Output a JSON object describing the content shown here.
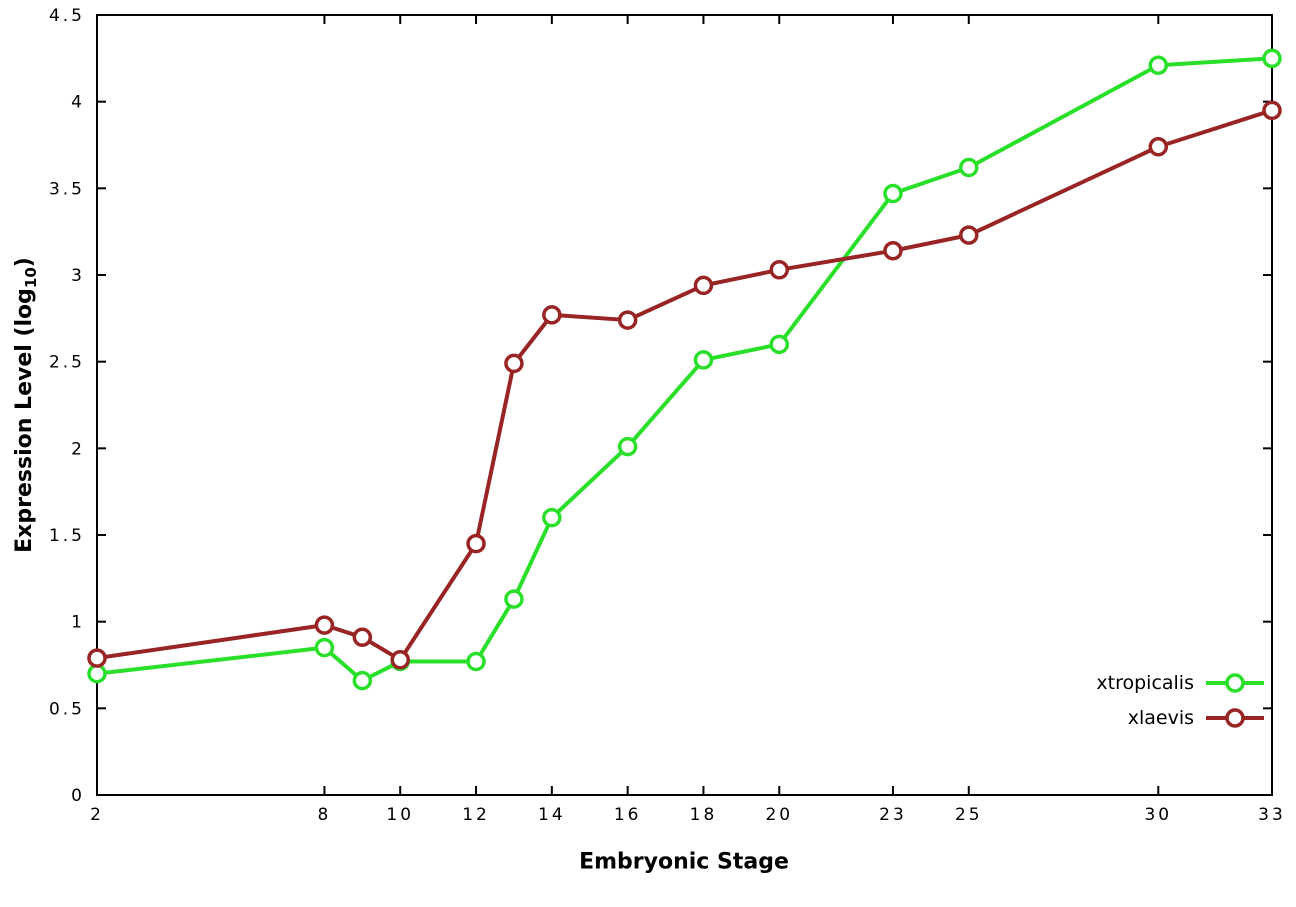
{
  "chart_data": {
    "type": "line",
    "title": "",
    "xlabel": "Embryonic Stage",
    "ylabel": {
      "text": "Expression Level (log",
      "sub": "10",
      "suffix": ")"
    },
    "x": [
      2,
      8,
      9,
      10,
      12,
      13,
      14,
      16,
      18,
      20,
      23,
      25,
      30,
      33
    ],
    "series": [
      {
        "name": "xtropicalis",
        "color": "#2adf2a",
        "values": [
          0.7,
          0.85,
          0.66,
          0.77,
          0.77,
          1.13,
          1.6,
          2.01,
          2.51,
          2.6,
          3.47,
          3.62,
          4.21,
          4.25
        ]
      },
      {
        "name": "xlaevis",
        "color": "#992424",
        "values": [
          0.79,
          0.98,
          0.91,
          0.78,
          1.45,
          2.49,
          2.77,
          2.74,
          2.94,
          3.03,
          3.14,
          3.23,
          3.74,
          3.95
        ]
      }
    ],
    "xticks": [
      2,
      8,
      10,
      12,
      14,
      16,
      18,
      20,
      23,
      25,
      30,
      33
    ],
    "yticks": [
      0,
      0.5,
      1,
      1.5,
      2,
      2.5,
      3,
      3.5,
      4,
      4.5
    ],
    "xlim": [
      2,
      33
    ],
    "ylim": [
      0,
      4.5
    ],
    "grid": false,
    "legend_position": "inside-bottom-right",
    "axis_color": "#000000",
    "background": "#ffffff",
    "marker": "open-circle",
    "line_width": 4
  }
}
